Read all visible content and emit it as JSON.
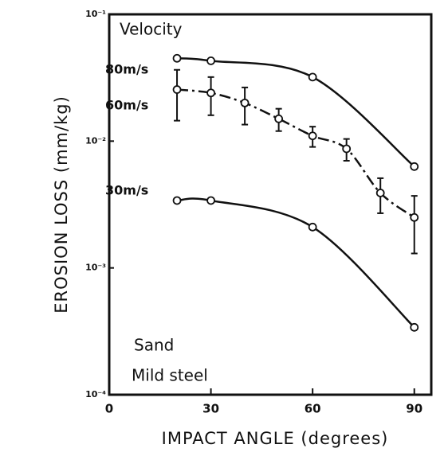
{
  "chart_data": {
    "type": "line",
    "x_label": "IMPACT ANGLE (degrees)",
    "y_label": "EROSION LOSS (mm/kg)",
    "annotations": [
      "Velocity",
      "Sand",
      "Mild steel"
    ],
    "log_y": true,
    "xlim": [
      0,
      95
    ],
    "xticks": [
      0,
      30,
      60,
      90
    ],
    "ylim": [
      0.0001,
      0.1
    ],
    "yticks": [
      {
        "value": 0.0001,
        "label": "10⁻⁴"
      },
      {
        "value": 0.001,
        "label": "10⁻³"
      },
      {
        "value": 0.01,
        "label": "10⁻²"
      },
      {
        "value": 0.1,
        "label": "10⁻¹"
      }
    ],
    "series": [
      {
        "name": "80m/s",
        "color": "#111111",
        "style": "solid",
        "x": [
          20,
          30,
          60,
          90
        ],
        "values": [
          0.045,
          0.043,
          0.032,
          0.0063
        ]
      },
      {
        "name": "60m/s",
        "color": "#111111",
        "style": "dashdot",
        "x": [
          20,
          30,
          40,
          50,
          60,
          70,
          80,
          90
        ],
        "values": [
          0.0255,
          0.024,
          0.02,
          0.015,
          0.011,
          0.0087,
          0.0039,
          0.0025
        ],
        "errors": [
          0.011,
          0.008,
          0.0065,
          0.003,
          0.002,
          0.0017,
          0.0012,
          0.0012
        ]
      },
      {
        "name": "30m/s",
        "color": "#111111",
        "style": "solid",
        "x": [
          20,
          30,
          60,
          90
        ],
        "values": [
          0.0034,
          0.0034,
          0.0021,
          0.00034
        ]
      }
    ]
  }
}
